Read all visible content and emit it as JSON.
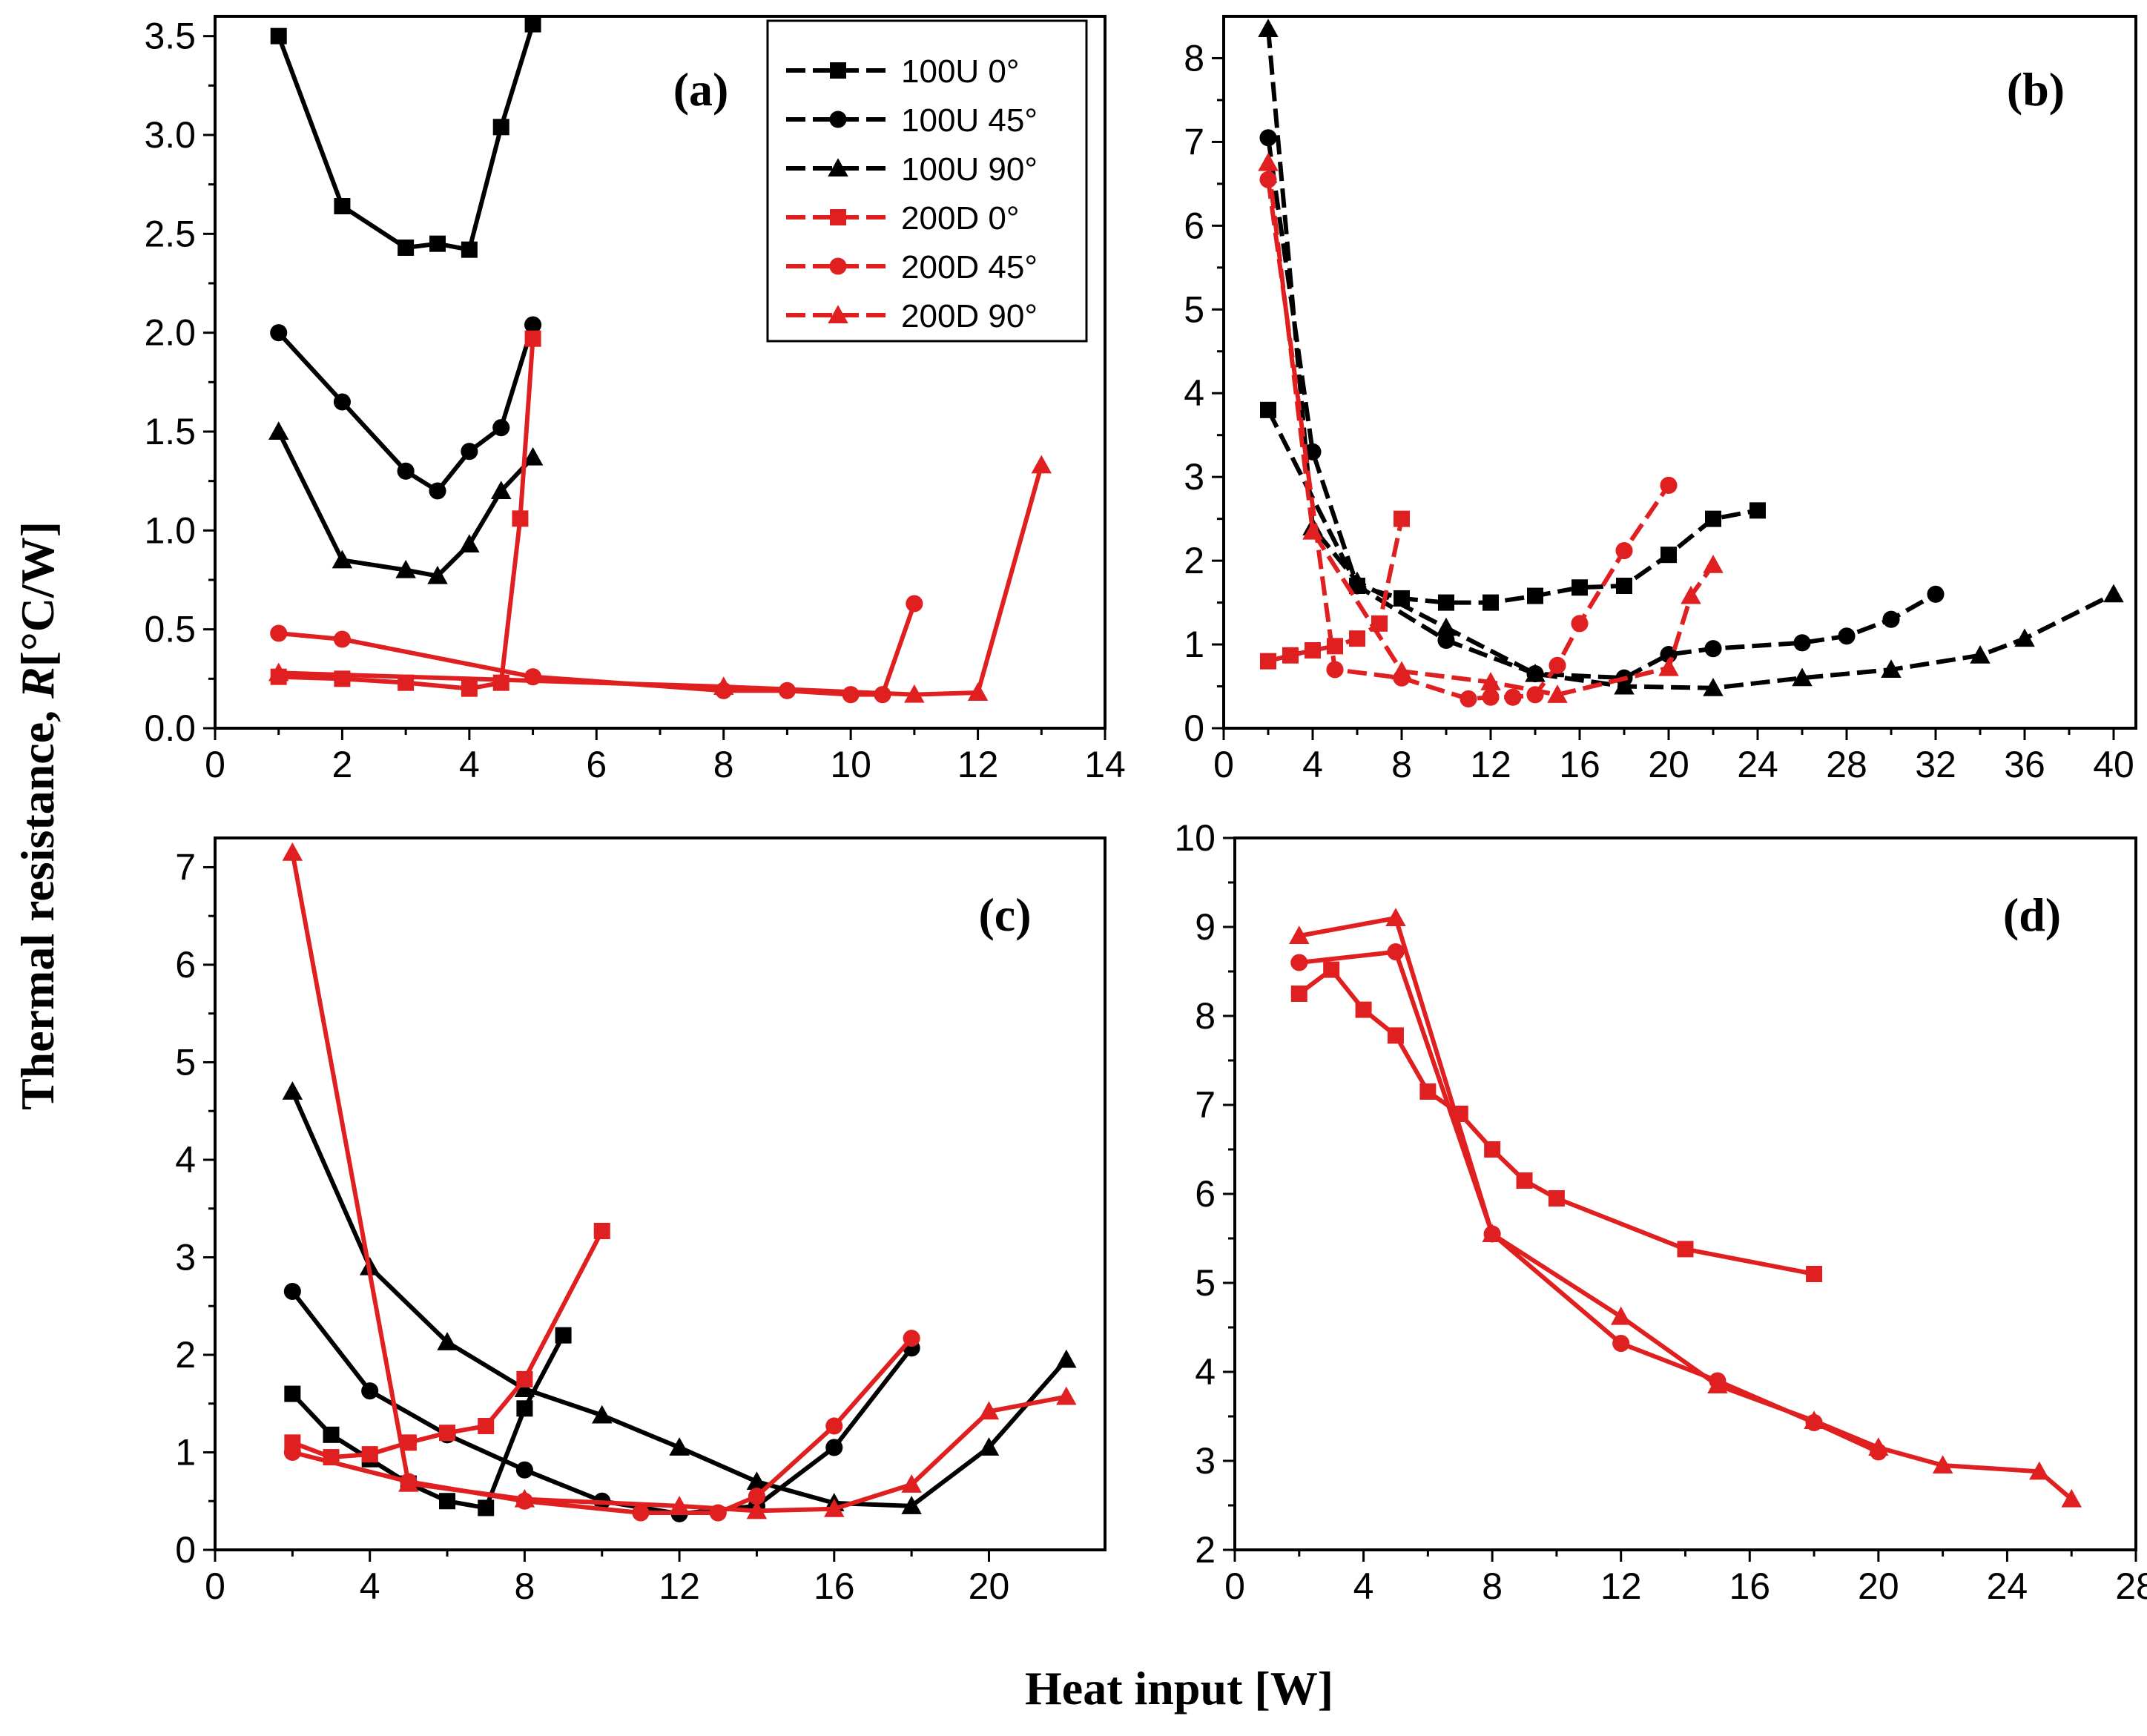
{
  "figure": {
    "ylabel_main": "Thermal resistance, ",
    "ylabel_italic": "R",
    "ylabel_unit": "[°C/W]",
    "xlabel": "Heat input [W]"
  },
  "legend": [
    {
      "label": "100U 0°",
      "color": "#000000",
      "marker": "square"
    },
    {
      "label": "100U 45°",
      "color": "#000000",
      "marker": "circle"
    },
    {
      "label": "100U 90°",
      "color": "#000000",
      "marker": "triangle"
    },
    {
      "label": "200D 0°",
      "color": "#e02020",
      "marker": "square"
    },
    {
      "label": "200D 45°",
      "color": "#e02020",
      "marker": "circle"
    },
    {
      "label": "200D 90°",
      "color": "#e02020",
      "marker": "triangle"
    }
  ],
  "chart_data": [
    {
      "type": "line",
      "panel": "(a)",
      "xlim": [
        0,
        14
      ],
      "ylim": [
        0,
        3.6
      ],
      "xticks": [
        "0",
        "2",
        "4",
        "6",
        "8",
        "10",
        "12",
        "14"
      ],
      "yticks": [
        "0.0",
        "0.5",
        "1.0",
        "1.5",
        "2.0",
        "2.5",
        "3.0",
        "3.5"
      ],
      "series": [
        {
          "name": "100U 0°",
          "color": "#000000",
          "marker": "square",
          "dash": "solid",
          "x": [
            1,
            2,
            3,
            3.5,
            4,
            4.5,
            5
          ],
          "y": [
            3.5,
            2.64,
            2.43,
            2.45,
            2.42,
            3.04,
            3.56
          ]
        },
        {
          "name": "100U 45°",
          "color": "#000000",
          "marker": "circle",
          "dash": "solid",
          "x": [
            1,
            2,
            3,
            3.5,
            4,
            4.5,
            5
          ],
          "y": [
            2.0,
            1.65,
            1.3,
            1.2,
            1.4,
            1.52,
            2.04
          ]
        },
        {
          "name": "100U 90°",
          "color": "#000000",
          "marker": "triangle",
          "dash": "solid",
          "x": [
            1,
            2,
            3,
            3.5,
            4,
            4.5,
            5
          ],
          "y": [
            1.5,
            0.85,
            0.8,
            0.77,
            0.93,
            1.2,
            1.37
          ]
        },
        {
          "name": "200D 0°",
          "color": "#e02020",
          "marker": "square",
          "dash": "solid",
          "x": [
            1,
            2,
            3,
            4,
            4.5,
            4.8,
            5
          ],
          "y": [
            0.26,
            0.25,
            0.23,
            0.2,
            0.23,
            1.06,
            1.97
          ]
        },
        {
          "name": "200D 45°",
          "color": "#e02020",
          "marker": "circle",
          "dash": "solid",
          "x": [
            1,
            2,
            5,
            8,
            9,
            10,
            10.5,
            11
          ],
          "y": [
            0.48,
            0.45,
            0.26,
            0.19,
            0.19,
            0.17,
            0.17,
            0.63
          ]
        },
        {
          "name": "200D 90°",
          "color": "#e02020",
          "marker": "triangle",
          "dash": "solid",
          "x": [
            1,
            8,
            11,
            12,
            13
          ],
          "y": [
            0.28,
            0.21,
            0.17,
            0.18,
            1.33
          ]
        }
      ]
    },
    {
      "type": "line",
      "panel": "(b)",
      "xlim": [
        0,
        41
      ],
      "ylim": [
        0,
        8.5
      ],
      "xticks": [
        "0",
        "4",
        "8",
        "12",
        "16",
        "20",
        "24",
        "28",
        "32",
        "36",
        "40"
      ],
      "yticks": [
        "0",
        "1",
        "2",
        "3",
        "4",
        "5",
        "6",
        "7",
        "8"
      ],
      "series": [
        {
          "name": "100U 0°",
          "color": "#000000",
          "marker": "square",
          "dash": "dashed",
          "x": [
            2,
            6,
            8,
            10,
            12,
            14,
            16,
            18,
            20,
            22,
            24
          ],
          "y": [
            3.8,
            1.7,
            1.55,
            1.5,
            1.5,
            1.58,
            1.68,
            1.7,
            2.07,
            2.5,
            2.6
          ]
        },
        {
          "name": "100U 45°",
          "color": "#000000",
          "marker": "circle",
          "dash": "dashed",
          "x": [
            2,
            4,
            6,
            10,
            14,
            18,
            20,
            22,
            26,
            28,
            30,
            32
          ],
          "y": [
            7.05,
            3.3,
            1.7,
            1.05,
            0.65,
            0.6,
            0.88,
            0.95,
            1.02,
            1.1,
            1.3,
            1.6
          ]
        },
        {
          "name": "100U 90°",
          "color": "#000000",
          "marker": "triangle",
          "dash": "dashed",
          "x": [
            2,
            4,
            6,
            10,
            14,
            18,
            22,
            26,
            30,
            34,
            36,
            40
          ],
          "y": [
            8.35,
            2.4,
            1.75,
            1.2,
            0.65,
            0.5,
            0.48,
            0.6,
            0.7,
            0.87,
            1.07,
            1.6
          ]
        },
        {
          "name": "200D 0°",
          "color": "#e02020",
          "marker": "square",
          "dash": "dashed",
          "x": [
            2,
            3,
            4,
            5,
            6,
            7,
            8
          ],
          "y": [
            0.8,
            0.87,
            0.93,
            0.98,
            1.07,
            1.25,
            2.5
          ]
        },
        {
          "name": "200D 45°",
          "color": "#e02020",
          "marker": "circle",
          "dash": "dashed",
          "x": [
            2,
            5,
            8,
            11,
            12,
            13,
            14,
            15,
            16,
            18,
            20
          ],
          "y": [
            6.55,
            0.7,
            0.6,
            0.35,
            0.37,
            0.37,
            0.4,
            0.75,
            1.25,
            2.12,
            2.9
          ]
        },
        {
          "name": "200D 90°",
          "color": "#e02020",
          "marker": "triangle",
          "dash": "dashed",
          "x": [
            2,
            4,
            8,
            12,
            15,
            20,
            21,
            22
          ],
          "y": [
            6.75,
            2.35,
            0.68,
            0.55,
            0.4,
            0.72,
            1.58,
            1.95
          ]
        }
      ]
    },
    {
      "type": "line",
      "panel": "(c)",
      "xlim": [
        0,
        23
      ],
      "ylim": [
        0,
        7.3
      ],
      "xticks": [
        "0",
        "4",
        "8",
        "12",
        "16",
        "20"
      ],
      "yticks": [
        "0",
        "1",
        "2",
        "3",
        "4",
        "5",
        "6",
        "7"
      ],
      "series": [
        {
          "name": "100U 0°",
          "color": "#000000",
          "marker": "square",
          "dash": "solid",
          "x": [
            2,
            3,
            4,
            5,
            6,
            7,
            8,
            9
          ],
          "y": [
            1.6,
            1.18,
            0.93,
            0.68,
            0.5,
            0.43,
            1.45,
            2.2
          ]
        },
        {
          "name": "100U 45°",
          "color": "#000000",
          "marker": "circle",
          "dash": "solid",
          "x": [
            2,
            4,
            6,
            8,
            10,
            12,
            14,
            16,
            18
          ],
          "y": [
            2.65,
            1.63,
            1.18,
            0.82,
            0.5,
            0.37,
            0.45,
            1.05,
            2.07
          ]
        },
        {
          "name": "100U 90°",
          "color": "#000000",
          "marker": "triangle",
          "dash": "solid",
          "x": [
            2,
            4,
            6,
            8,
            10,
            12,
            14,
            16,
            18,
            20,
            22
          ],
          "y": [
            4.7,
            2.9,
            2.13,
            1.65,
            1.38,
            1.05,
            0.7,
            0.48,
            0.45,
            1.05,
            1.95
          ]
        },
        {
          "name": "200D 0°",
          "color": "#e02020",
          "marker": "square",
          "dash": "solid",
          "x": [
            2,
            3,
            4,
            5,
            6,
            7,
            8,
            10
          ],
          "y": [
            1.1,
            0.95,
            0.98,
            1.1,
            1.2,
            1.27,
            1.75,
            3.27
          ]
        },
        {
          "name": "200D 45°",
          "color": "#e02020",
          "marker": "circle",
          "dash": "solid",
          "x": [
            2,
            5,
            8,
            11,
            13,
            14,
            16,
            18
          ],
          "y": [
            1.0,
            0.7,
            0.5,
            0.38,
            0.38,
            0.55,
            1.27,
            2.17
          ]
        },
        {
          "name": "200D 90°",
          "color": "#e02020",
          "marker": "triangle",
          "dash": "solid",
          "x": [
            2,
            5,
            8,
            12,
            14,
            16,
            18,
            20,
            22
          ],
          "y": [
            7.15,
            0.68,
            0.52,
            0.45,
            0.4,
            0.42,
            0.67,
            1.42,
            1.57
          ]
        }
      ]
    },
    {
      "type": "line",
      "panel": "(d)",
      "xlim": [
        0,
        28
      ],
      "ylim": [
        2,
        10
      ],
      "xticks": [
        "0",
        "4",
        "8",
        "12",
        "16",
        "20",
        "24",
        "28"
      ],
      "yticks": [
        "2",
        "3",
        "4",
        "5",
        "6",
        "7",
        "8",
        "9",
        "10"
      ],
      "series": [
        {
          "name": "200D 0°",
          "color": "#e02020",
          "marker": "square",
          "dash": "solid",
          "x": [
            2,
            3,
            4,
            5,
            6,
            7,
            8,
            9,
            10,
            14,
            18
          ],
          "y": [
            8.25,
            8.52,
            8.07,
            7.78,
            7.15,
            6.9,
            6.5,
            6.15,
            5.95,
            5.38,
            5.1
          ]
        },
        {
          "name": "200D 45°",
          "color": "#e02020",
          "marker": "circle",
          "dash": "solid",
          "x": [
            2,
            5,
            8,
            12,
            15,
            18,
            20
          ],
          "y": [
            8.6,
            8.72,
            5.55,
            4.32,
            3.9,
            3.43,
            3.1
          ]
        },
        {
          "name": "200D 90°",
          "color": "#e02020",
          "marker": "triangle",
          "dash": "solid",
          "x": [
            2,
            5,
            8,
            12,
            15,
            18,
            20,
            22,
            25,
            26
          ],
          "y": [
            8.9,
            9.1,
            5.55,
            4.62,
            3.85,
            3.45,
            3.15,
            2.95,
            2.88,
            2.57
          ]
        }
      ]
    }
  ]
}
